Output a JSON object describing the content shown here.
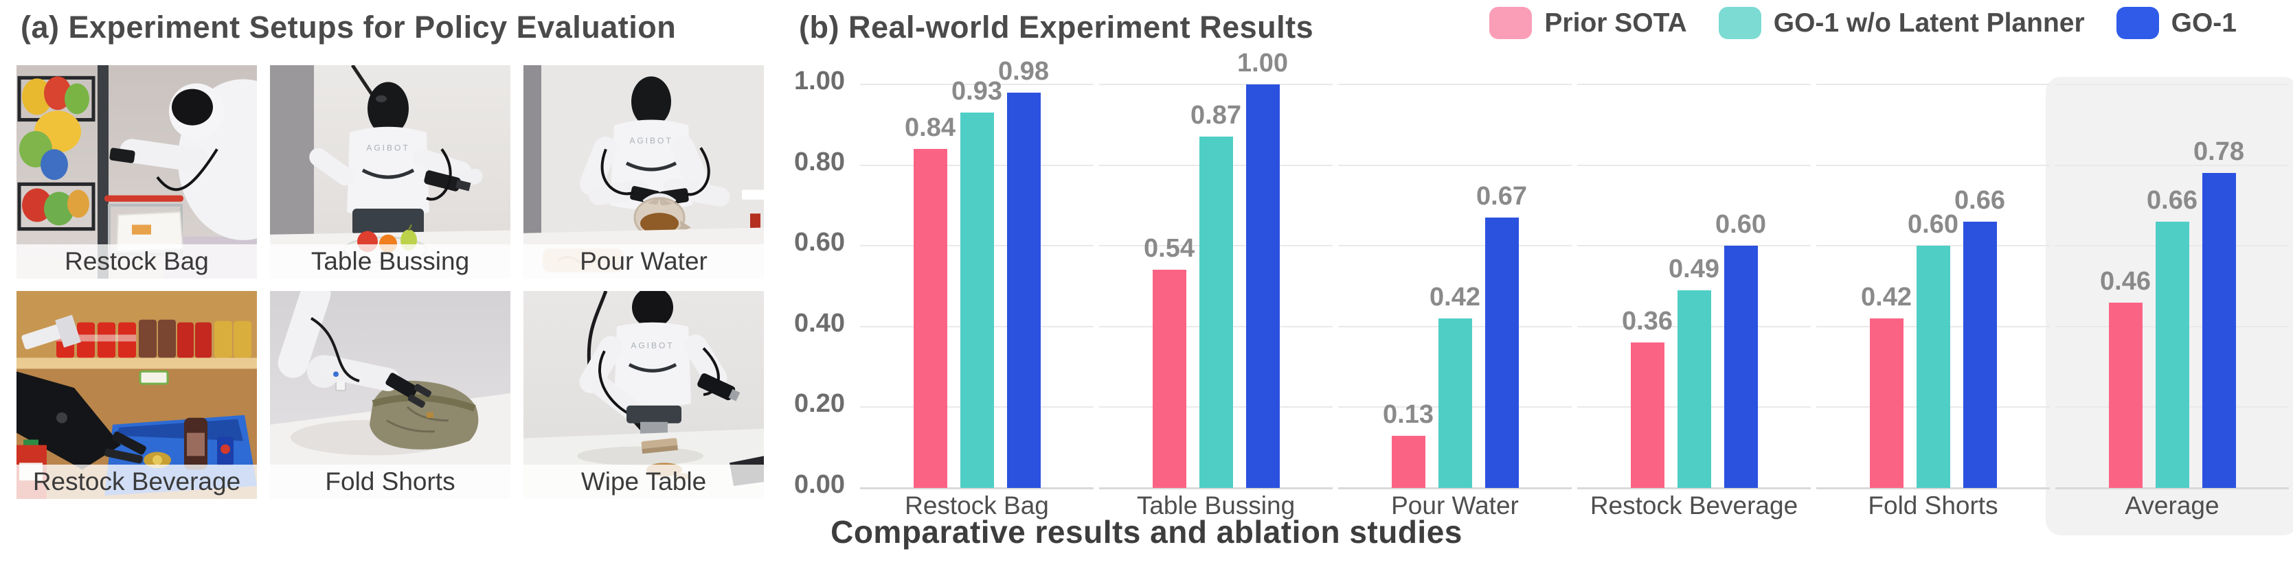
{
  "panel_a": {
    "title": "(a) Experiment Setups for Policy Evaluation",
    "robot_brand": "AGIBOT",
    "setups": [
      "Restock Bag",
      "Table Bussing",
      "Pour Water",
      "Restock Beverage",
      "Fold Shorts",
      "Wipe Table"
    ]
  },
  "panel_b": {
    "title": "(b) Real-world Experiment Results",
    "caption": "Comparative results and ablation studies"
  },
  "chart_data": {
    "type": "bar",
    "title": "(b) Real-world Experiment Results",
    "categories": [
      "Restock Bag",
      "Table Bussing",
      "Pour Water",
      "Restock Beverage",
      "Fold Shorts",
      "Average"
    ],
    "series": [
      {
        "name": "Prior SOTA",
        "bar_color": "#fb6384",
        "swatch_color": "#fa9eb8",
        "values": [
          0.84,
          0.54,
          0.13,
          0.36,
          0.42,
          0.46
        ]
      },
      {
        "name": "GO-1 w/o Latent Planner",
        "bar_color": "#4fcec5",
        "swatch_color": "#7cdbd2",
        "values": [
          0.93,
          0.87,
          0.42,
          0.49,
          0.6,
          0.66
        ]
      },
      {
        "name": "GO-1",
        "bar_color": "#2b51df",
        "swatch_color": "#2f5be8",
        "values": [
          0.98,
          1.0,
          0.67,
          0.6,
          0.66,
          0.78
        ]
      }
    ],
    "ylim": [
      0,
      1.0
    ],
    "yticks": [
      "0.00",
      "0.20",
      "0.40",
      "0.60",
      "0.80",
      "1.00"
    ],
    "grid": true,
    "legend_position": "top-right",
    "highlight_category": "Average",
    "value_label_format": "0.00"
  }
}
